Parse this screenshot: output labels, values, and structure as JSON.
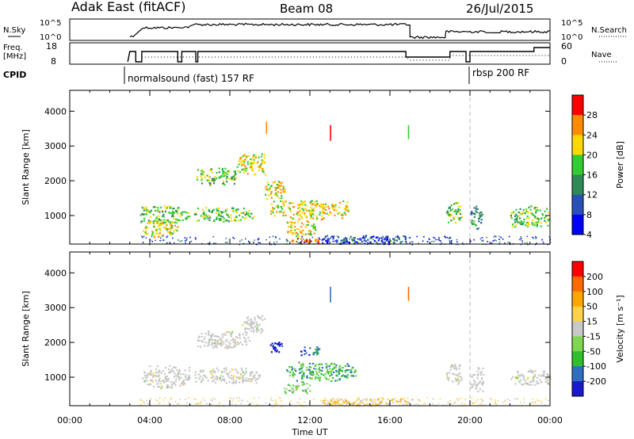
{
  "header": {
    "title": "Adak East (fitACF)",
    "beam": "Beam 08",
    "date": "26/Jul/2015"
  },
  "noise_panel": {
    "left_label": "N.Sky",
    "right_label": "N.Search",
    "left_ticks": [
      "10^5",
      "10^0"
    ],
    "right_ticks": [
      "10^5",
      "10^0"
    ]
  },
  "freq_panel": {
    "left_label_line1": "Freq.",
    "left_label_line2": "[MHz]",
    "right_label": "Nave",
    "left_ticks": [
      "18",
      "8"
    ],
    "right_ticks": [
      "60",
      "0"
    ]
  },
  "cpid": {
    "label": "CPID",
    "mode1": "normalsound (fast) 157 RF",
    "mode2": "rbsp 200 RF"
  },
  "chart_data": [
    {
      "type": "heatmap",
      "name": "power",
      "ylabel": "Slant Range [km]",
      "yticks": [
        1000,
        2000,
        3000,
        4000
      ],
      "ylim": [
        180,
        4600
      ],
      "xlim": [
        0,
        24
      ],
      "colorbar_label": "Power [dB]",
      "colorbar_ticks": [
        "28",
        "24",
        "20",
        "16",
        "12",
        "8",
        "4"
      ],
      "colorbar_colors": [
        "#0000ff",
        "#2b4fb8",
        "#2e8b57",
        "#32cd32",
        "#ffd700",
        "#ff8c00",
        "#ff0000"
      ],
      "blobs": [
        {
          "t0": 3.6,
          "t1": 5.4,
          "r0": 400,
          "r1": 900,
          "level": 4
        },
        {
          "t0": 3.5,
          "t1": 6.0,
          "r0": 800,
          "r1": 1300,
          "level": 3
        },
        {
          "t0": 6.2,
          "t1": 9.2,
          "r0": 850,
          "r1": 1250,
          "level": 3
        },
        {
          "t0": 6.3,
          "t1": 8.3,
          "r0": 1900,
          "r1": 2400,
          "level": 3
        },
        {
          "t0": 8.3,
          "t1": 9.8,
          "r0": 2200,
          "r1": 2800,
          "level": 4
        },
        {
          "t0": 9.6,
          "t1": 10.8,
          "r0": 1500,
          "r1": 2000,
          "level": 4
        },
        {
          "t0": 10.0,
          "t1": 14.0,
          "r0": 900,
          "r1": 1450,
          "level": 4
        },
        {
          "t0": 10.8,
          "t1": 12.3,
          "r0": 400,
          "r1": 900,
          "level": 4
        },
        {
          "t0": 11.0,
          "t1": 12.5,
          "r0": 200,
          "r1": 380,
          "level": 5
        },
        {
          "t0": 18.8,
          "t1": 19.6,
          "r0": 800,
          "r1": 1400,
          "level": 3
        },
        {
          "t0": 20.0,
          "t1": 20.6,
          "r0": 600,
          "r1": 1300,
          "level": 2
        },
        {
          "t0": 22.0,
          "t1": 24.0,
          "r0": 700,
          "r1": 1300,
          "level": 3
        },
        {
          "t0": 12.5,
          "t1": 17.0,
          "r0": 200,
          "r1": 450,
          "level": 1
        }
      ],
      "streaks": [
        {
          "t": 9.8,
          "r0": 3350,
          "r1": 3700,
          "level": 5
        },
        {
          "t": 13.0,
          "r0": 3150,
          "r1": 3600,
          "level": 6
        },
        {
          "t": 16.9,
          "r0": 3200,
          "r1": 3600,
          "level": 3
        }
      ]
    },
    {
      "type": "heatmap",
      "name": "velocity",
      "ylabel": "Slant Range [km]",
      "xlabel": "Time UT",
      "xticks": [
        "00:00",
        "04:00",
        "08:00",
        "12:00",
        "16:00",
        "20:00",
        "00:00"
      ],
      "yticks": [
        1000,
        2000,
        3000,
        4000
      ],
      "ylim": [
        180,
        4600
      ],
      "xlim": [
        0,
        24
      ],
      "colorbar_label": "Velocity [m s⁻¹]",
      "colorbar_ticks": [
        "200",
        "100",
        "50",
        "15",
        "-15",
        "-50",
        "-100",
        "-200"
      ],
      "colorbar_colors": [
        "#ff0000",
        "#ff6a00",
        "#ffa500",
        "#ffd24a",
        "#c8c8c8",
        "#7fd650",
        "#2fbf2f",
        "#2f6fbf",
        "#1a1acc"
      ],
      "blobs": [
        {
          "t0": 3.6,
          "t1": 6.0,
          "r0": 700,
          "r1": 1350,
          "level": 4
        },
        {
          "t0": 6.2,
          "t1": 9.5,
          "r0": 850,
          "r1": 1300,
          "level": 4
        },
        {
          "t0": 6.3,
          "t1": 9.0,
          "r0": 1850,
          "r1": 2350,
          "level": 4
        },
        {
          "t0": 8.6,
          "t1": 9.8,
          "r0": 2250,
          "r1": 2800,
          "level": 4
        },
        {
          "t0": 9.9,
          "t1": 10.6,
          "r0": 1700,
          "r1": 2100,
          "level": 8
        },
        {
          "t0": 11.5,
          "t1": 12.6,
          "r0": 1650,
          "r1": 1900,
          "level": 7
        },
        {
          "t0": 10.8,
          "t1": 14.3,
          "r0": 900,
          "r1": 1450,
          "level": 6
        },
        {
          "t0": 10.6,
          "t1": 12.0,
          "r0": 550,
          "r1": 900,
          "level": 5
        },
        {
          "t0": 12.5,
          "t1": 17.0,
          "r0": 200,
          "r1": 420,
          "level": 3
        },
        {
          "t0": 18.8,
          "t1": 19.6,
          "r0": 800,
          "r1": 1400,
          "level": 4
        },
        {
          "t0": 20.0,
          "t1": 20.7,
          "r0": 600,
          "r1": 1300,
          "level": 4
        },
        {
          "t0": 22.0,
          "t1": 24.0,
          "r0": 800,
          "r1": 1250,
          "level": 4
        }
      ],
      "streaks": [
        {
          "t": 13.0,
          "r0": 3150,
          "r1": 3600,
          "level": 7
        },
        {
          "t": 16.9,
          "r0": 3200,
          "r1": 3600,
          "level": 1
        }
      ]
    }
  ]
}
